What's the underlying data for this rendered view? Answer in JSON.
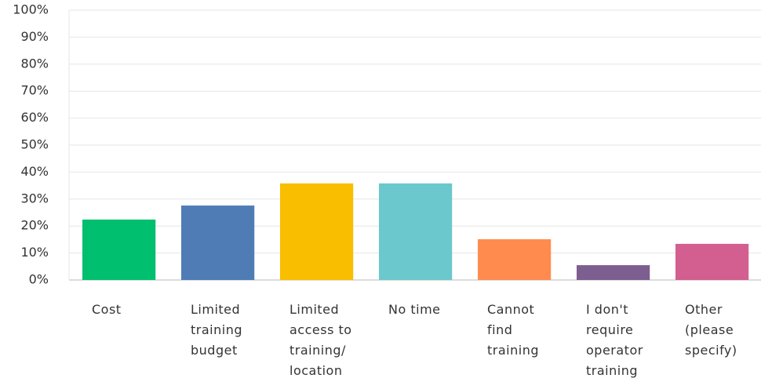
{
  "chart_data": {
    "type": "bar",
    "categories": [
      "Cost",
      "Limited training budget",
      "Limited access to training/ location",
      "No time",
      "Cannot find training",
      "I don't require operator training",
      "Other (please specify)"
    ],
    "values": [
      22.4,
      27.6,
      35.8,
      35.8,
      15.1,
      5.5,
      13.4
    ],
    "colors": [
      "#00bf6f",
      "#507cb6",
      "#f9be00",
      "#6bc8cd",
      "#ff8b4f",
      "#7d5e90",
      "#d25f90"
    ],
    "ylim": [
      0,
      100
    ],
    "yticks": [
      {
        "value": 0,
        "label": "0%"
      },
      {
        "value": 10,
        "label": "10%"
      },
      {
        "value": 20,
        "label": "20%"
      },
      {
        "value": 30,
        "label": "30%"
      },
      {
        "value": 40,
        "label": "40%"
      },
      {
        "value": 50,
        "label": "50%"
      },
      {
        "value": 60,
        "label": "60%"
      },
      {
        "value": 70,
        "label": "70%"
      },
      {
        "value": 80,
        "label": "80%"
      },
      {
        "value": 90,
        "label": "90%"
      },
      {
        "value": 100,
        "label": "100%"
      }
    ],
    "grid": true
  }
}
